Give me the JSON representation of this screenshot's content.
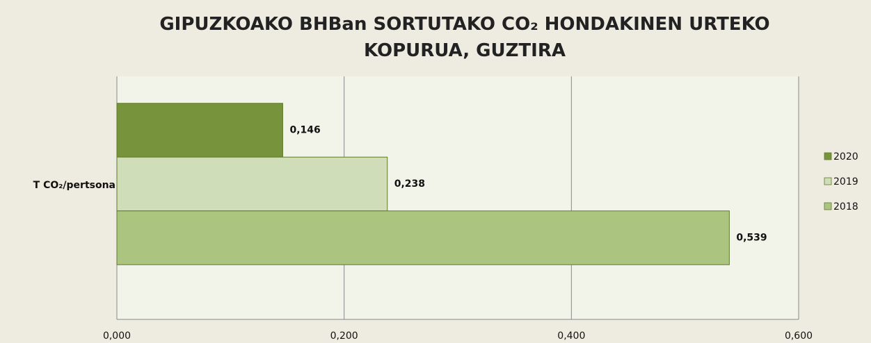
{
  "chart_data": {
    "type": "barh",
    "title": "GIPUZKOAKO BHBan SORTUTAKO CO₂ HONDAKINEN URTEKO KOPURUA, GUZTIRA",
    "categories": [
      "T CO₂/pertsona"
    ],
    "series": [
      {
        "name": "2020",
        "color": "#77933c",
        "values": [
          0.146
        ],
        "value_labels": [
          "0,146"
        ]
      },
      {
        "name": "2019",
        "color": "#d0ddb9",
        "values": [
          0.238
        ],
        "value_labels": [
          "0,238"
        ]
      },
      {
        "name": "2018",
        "color": "#abc47f",
        "values": [
          0.539
        ],
        "value_labels": [
          "0,539"
        ]
      }
    ],
    "xlim": [
      0,
      0.6
    ],
    "xticks": [
      {
        "value": 0,
        "label": "0,000"
      },
      {
        "value": 0.2,
        "label": "0,200"
      },
      {
        "value": 0.4,
        "label": "0,400"
      },
      {
        "value": 0.6,
        "label": "0,600"
      }
    ],
    "grid": true,
    "legend": "right"
  }
}
